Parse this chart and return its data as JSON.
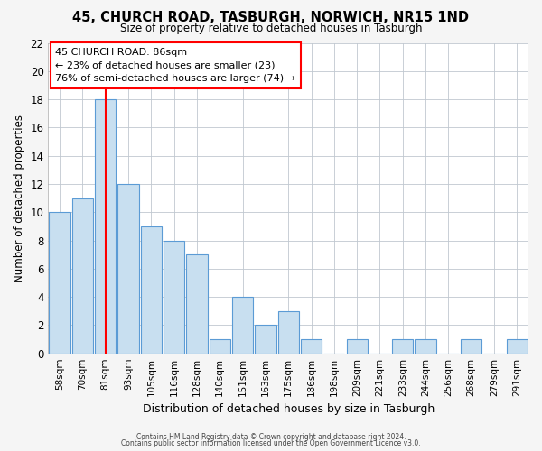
{
  "title1": "45, CHURCH ROAD, TASBURGH, NORWICH, NR15 1ND",
  "title2": "Size of property relative to detached houses in Tasburgh",
  "xlabel": "Distribution of detached houses by size in Tasburgh",
  "ylabel": "Number of detached properties",
  "bar_labels": [
    "58sqm",
    "70sqm",
    "81sqm",
    "93sqm",
    "105sqm",
    "116sqm",
    "128sqm",
    "140sqm",
    "151sqm",
    "163sqm",
    "175sqm",
    "186sqm",
    "198sqm",
    "209sqm",
    "221sqm",
    "233sqm",
    "244sqm",
    "256sqm",
    "268sqm",
    "279sqm",
    "291sqm"
  ],
  "bar_heights": [
    10,
    11,
    18,
    12,
    9,
    8,
    7,
    1,
    4,
    2,
    3,
    1,
    0,
    1,
    0,
    1,
    1,
    0,
    1,
    0,
    1
  ],
  "bar_color": "#c8dff0",
  "bar_edge_color": "#5b9bd5",
  "red_line_index": 2,
  "ylim": [
    0,
    22
  ],
  "yticks": [
    0,
    2,
    4,
    6,
    8,
    10,
    12,
    14,
    16,
    18,
    20,
    22
  ],
  "annotation_title": "45 CHURCH ROAD: 86sqm",
  "annotation_line1": "← 23% of detached houses are smaller (23)",
  "annotation_line2": "76% of semi-detached houses are larger (74) →",
  "footer1": "Contains HM Land Registry data © Crown copyright and database right 2024.",
  "footer2": "Contains public sector information licensed under the Open Government Licence v3.0.",
  "background_color": "#f5f5f5",
  "plot_background": "#ffffff",
  "grid_color": "#c0c8d0"
}
